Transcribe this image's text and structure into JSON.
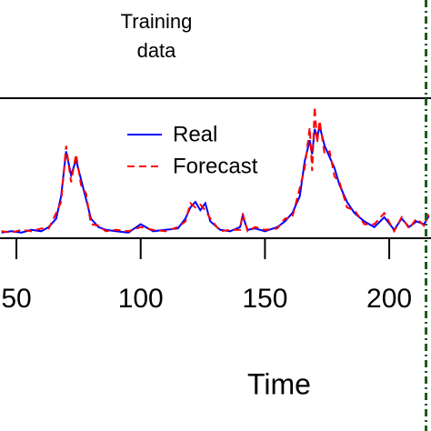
{
  "chart_data": {
    "type": "line",
    "annotation": [
      "Training",
      "data"
    ],
    "xlabel": "Time",
    "x": [
      44,
      48,
      52,
      56,
      60,
      63,
      66,
      68,
      70,
      72,
      74,
      76,
      78,
      80,
      83,
      86,
      90,
      95,
      100,
      105,
      110,
      115,
      118,
      120,
      122,
      124,
      126,
      128,
      132,
      136,
      140,
      141,
      143,
      146,
      150,
      155,
      158,
      161,
      164,
      166,
      168,
      169,
      170,
      171,
      172,
      174,
      176,
      178,
      180,
      183,
      186,
      190,
      194,
      198,
      202,
      205,
      208,
      211,
      214,
      216
    ],
    "series": [
      {
        "name": "Real",
        "color": "#0000ff",
        "dash": "none",
        "values": [
          4,
          5,
          4,
          6,
          5,
          8,
          14,
          30,
          62,
          45,
          56,
          42,
          28,
          14,
          8,
          6,
          5,
          4,
          10,
          5,
          6,
          7,
          14,
          22,
          26,
          20,
          25,
          12,
          6,
          5,
          8,
          16,
          6,
          7,
          5,
          8,
          12,
          18,
          30,
          55,
          70,
          60,
          78,
          72,
          80,
          66,
          58,
          50,
          38,
          26,
          18,
          12,
          8,
          15,
          6,
          14,
          8,
          12,
          10,
          16
        ]
      },
      {
        "name": "Forecast",
        "color": "#ff0000",
        "dash": "8 5",
        "values": [
          5,
          4,
          6,
          5,
          7,
          7,
          18,
          26,
          66,
          40,
          60,
          38,
          32,
          10,
          9,
          5,
          6,
          5,
          8,
          6,
          5,
          8,
          12,
          25,
          22,
          24,
          20,
          14,
          5,
          6,
          6,
          18,
          5,
          8,
          6,
          7,
          14,
          15,
          36,
          50,
          79,
          48,
          94,
          68,
          84,
          60,
          62,
          44,
          40,
          22,
          20,
          10,
          10,
          18,
          5,
          15,
          7,
          14,
          9,
          18
        ]
      }
    ],
    "xlim": [
      43.4,
      216.8
    ],
    "xticks": [
      50,
      100,
      150,
      200
    ],
    "ylim": [
      0,
      100
    ],
    "vline_x": 214.8,
    "vline_color": "#1e5a1e"
  }
}
